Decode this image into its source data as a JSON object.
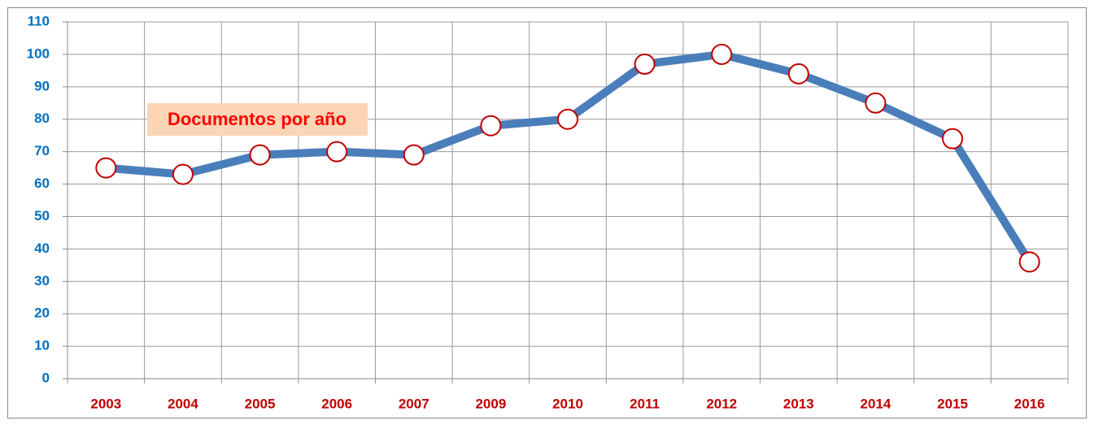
{
  "chart_data": {
    "type": "line",
    "annotation": "Documentos por año",
    "categories": [
      "2003",
      "2004",
      "2005",
      "2006",
      "2007",
      "2009",
      "2010",
      "2011",
      "2012",
      "2013",
      "2014",
      "2015",
      "2016"
    ],
    "series": [
      {
        "name": "Documentos por año",
        "color": "#4a7ebb",
        "values": [
          65,
          63,
          69,
          70,
          69,
          78,
          80,
          97,
          100,
          94,
          85,
          74,
          36
        ]
      }
    ],
    "marker_fill": "#ffffff",
    "marker_stroke": "#c00000",
    "ylim": [
      0,
      110
    ],
    "yticks": [
      0,
      10,
      20,
      30,
      40,
      50,
      60,
      70,
      80,
      90,
      100,
      110
    ],
    "grid": true
  }
}
